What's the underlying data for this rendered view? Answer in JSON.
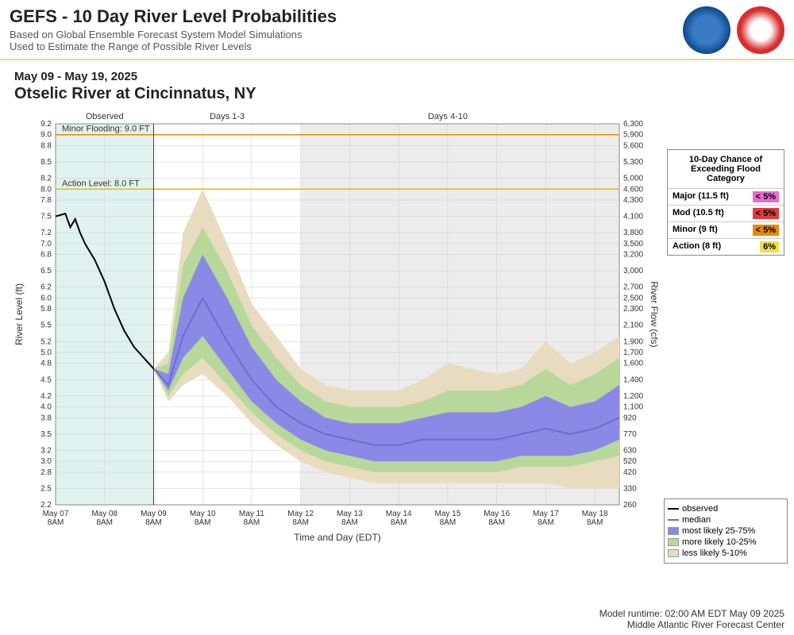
{
  "header": {
    "title": "GEFS - 10 Day River Level Probabilities",
    "sub1": "Based on Global Ensemble Forecast System Model Simulations",
    "sub2": "Used to Estimate the Range of Possible River Levels"
  },
  "date_range": "May 09 - May 19, 2025",
  "location": "Otselic River at Cincinnatus, NY",
  "chart": {
    "x_labels": [
      "May 07\n8AM",
      "May 08\n8AM",
      "May 09\n8AM",
      "May 10\n8AM",
      "May 11\n8AM",
      "May 12\n8AM",
      "May 13\n8AM",
      "May 14\n8AM",
      "May 15\n8AM",
      "May 16\n8AM",
      "May 17\n8AM",
      "May 18\n8AM"
    ],
    "period_labels": [
      "Observed",
      "Days 1-3",
      "Days 4-10"
    ],
    "y_left_label": "River Level (ft)",
    "y_right_label": "River Flow (cfs)",
    "x_axis_label": "Time and Day (EDT)",
    "y_left_ticks": [
      2.2,
      2.5,
      2.8,
      3.0,
      3.2,
      3.5,
      3.8,
      4.0,
      4.2,
      4.5,
      4.8,
      5.0,
      5.2,
      5.5,
      5.8,
      6.0,
      6.2,
      6.5,
      6.8,
      7.0,
      7.2,
      7.5,
      7.8,
      8.0,
      8.2,
      8.5,
      8.8,
      9.0,
      9.2
    ],
    "y_right_ticks": [
      260,
      330,
      420,
      520,
      630,
      770,
      920,
      1100,
      1200,
      1400,
      1600,
      1700,
      1900,
      2100,
      2300,
      2500,
      2700,
      3000,
      3200,
      3500,
      3800,
      4100,
      4300,
      4600,
      5000,
      5300,
      5600,
      5900,
      6300
    ],
    "ylim": [
      2.2,
      9.2
    ],
    "thresholds": [
      {
        "label": "Minor Flooding: 9.0 FT",
        "value": 9.0,
        "color": "#e68a00"
      },
      {
        "label": "Action Level: 8.0 FT",
        "value": 8.0,
        "color": "#e6b800"
      }
    ],
    "observed_bg": "#e0f2f0",
    "days410_bg": "#ececec",
    "colors": {
      "observed_line": "#000000",
      "median_line": "#6b6bd4",
      "band_2575": "#8a8ae6",
      "band_1025": "#b7d89a",
      "band_0510": "#e8dcc0",
      "current_time_line": "#cc0000",
      "gridline": "#cccccc"
    },
    "x_vals": [
      0,
      0.25,
      0.5,
      0.75,
      1,
      1.25,
      1.5,
      1.75,
      2,
      2.3,
      2.6,
      3,
      3.5,
      4,
      4.5,
      5,
      5.5,
      6,
      6.5,
      7,
      7.5,
      8,
      8.5,
      9,
      9.5,
      10,
      10.5,
      11,
      11.5
    ],
    "observed": {
      "x": [
        0,
        0.2,
        0.3,
        0.4,
        0.5,
        0.6,
        0.8,
        1.0,
        1.2,
        1.4,
        1.6,
        1.8,
        2.0
      ],
      "y": [
        7.5,
        7.55,
        7.3,
        7.45,
        7.2,
        7.0,
        6.7,
        6.3,
        5.8,
        5.4,
        5.1,
        4.9,
        4.7
      ]
    },
    "median": {
      "x": [
        2.0,
        2.3,
        2.6,
        3.0,
        3.5,
        4.0,
        4.5,
        5.0,
        5.5,
        6.0,
        6.5,
        7.0,
        7.5,
        8.0,
        8.5,
        9.0,
        9.5,
        10.0,
        10.5,
        11.0,
        11.5
      ],
      "y": [
        4.7,
        4.4,
        5.3,
        6.0,
        5.2,
        4.5,
        4.0,
        3.7,
        3.5,
        3.4,
        3.3,
        3.3,
        3.4,
        3.4,
        3.4,
        3.4,
        3.5,
        3.6,
        3.5,
        3.6,
        3.8
      ]
    },
    "band_2575_lo": [
      4.7,
      4.3,
      4.9,
      5.3,
      4.7,
      4.1,
      3.7,
      3.4,
      3.2,
      3.1,
      3.0,
      3.0,
      3.0,
      3.0,
      3.0,
      3.0,
      3.1,
      3.1,
      3.1,
      3.2,
      3.4
    ],
    "band_2575_hi": [
      4.7,
      4.6,
      6.0,
      6.8,
      6.0,
      5.1,
      4.5,
      4.1,
      3.8,
      3.7,
      3.7,
      3.7,
      3.8,
      3.9,
      3.9,
      3.9,
      4.0,
      4.2,
      4.0,
      4.1,
      4.4
    ],
    "band_1025_lo": [
      4.7,
      4.2,
      4.6,
      4.9,
      4.4,
      3.9,
      3.5,
      3.2,
      3.0,
      2.9,
      2.8,
      2.8,
      2.8,
      2.8,
      2.8,
      2.8,
      2.9,
      2.9,
      2.9,
      3.0,
      3.1
    ],
    "band_1025_hi": [
      4.7,
      4.8,
      6.6,
      7.3,
      6.5,
      5.5,
      4.9,
      4.4,
      4.1,
      4.0,
      4.0,
      4.0,
      4.1,
      4.3,
      4.3,
      4.3,
      4.4,
      4.7,
      4.4,
      4.6,
      4.9
    ],
    "band_0510_lo": [
      4.7,
      4.1,
      4.4,
      4.6,
      4.2,
      3.7,
      3.3,
      3.0,
      2.8,
      2.7,
      2.6,
      2.6,
      2.6,
      2.6,
      2.6,
      2.6,
      2.6,
      2.6,
      2.5,
      2.5,
      2.5
    ],
    "band_0510_hi": [
      4.7,
      5.0,
      7.2,
      8.0,
      7.0,
      5.9,
      5.3,
      4.7,
      4.4,
      4.3,
      4.3,
      4.3,
      4.5,
      4.8,
      4.7,
      4.6,
      4.7,
      5.2,
      4.8,
      5.0,
      5.3
    ],
    "current_x": 2.0
  },
  "flood_box": {
    "title": "10-Day Chance of Exceeding Flood Category",
    "rows": [
      {
        "label": "Major (11.5 ft)",
        "pct": "< 5%",
        "bg": "#e86bd4"
      },
      {
        "label": "Mod (10.5 ft)",
        "pct": "< 5%",
        "bg": "#e63939"
      },
      {
        "label": "Minor (9 ft)",
        "pct": "< 5%",
        "bg": "#e68a00"
      },
      {
        "label": "Action (8 ft)",
        "pct": "6%",
        "bg": "#f0e040"
      }
    ]
  },
  "legend": {
    "rows": [
      {
        "type": "line",
        "color": "#000000",
        "label": "observed"
      },
      {
        "type": "line",
        "color": "#6b6bd4",
        "label": "median"
      },
      {
        "type": "box",
        "color": "#8a8ae6",
        "label": "most likely 25-75%"
      },
      {
        "type": "box",
        "color": "#b7d89a",
        "label": "more likely 10-25%"
      },
      {
        "type": "box",
        "color": "#e8dcc0",
        "label": "less likely 5-10%"
      }
    ]
  },
  "footer": {
    "line1": "Model runtime: 02:00 AM EDT May 09 2025",
    "line2": "Middle Atlantic River Forecast Center"
  }
}
